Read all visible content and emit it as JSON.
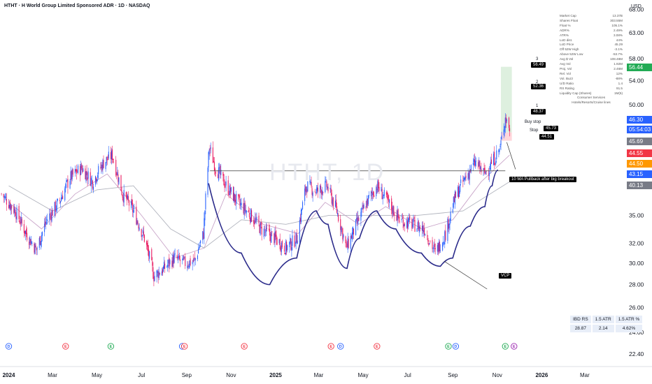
{
  "header": {
    "title": "HTHT · H World Group Limited Sponsored ADR · 1D · NASDAQ",
    "currency": "USD",
    "watermark": "HTHT, 1D"
  },
  "stats_panel": {
    "rows": [
      {
        "label": "Market Cap",
        "value": "13.37B"
      },
      {
        "label": "Shares Float",
        "value": "303.55M"
      },
      {
        "label": "Float %",
        "value": "105.1%"
      },
      {
        "label": "ADR%",
        "value": "2.49%"
      },
      {
        "label": "ATR%",
        "value": "3.08%"
      },
      {
        "label": "LoD dist.",
        "value": "44%"
      },
      {
        "label": "LoD Price",
        "value": "45.29"
      },
      {
        "label": "Off 52W High",
        "value": "-3.1%"
      },
      {
        "label": "Above 52W Low",
        "value": "-53.7%"
      },
      {
        "label": "Avg $ Vol",
        "value": "108.48M"
      },
      {
        "label": "Avg Vol",
        "value": "1.92M"
      },
      {
        "label": "Proj. Vol",
        "value": "2.46M"
      },
      {
        "label": "Rel. Vol",
        "value": "12%"
      },
      {
        "label": "Vol. Buzz",
        "value": "-88%"
      },
      {
        "label": "U/D Ratio",
        "value": "1.4"
      },
      {
        "label": "RS Rating",
        "value": "91.5"
      },
      {
        "label": "Liquidity Cap (Shares)",
        "value": "1M(5)"
      }
    ],
    "sector": "Consumer Services",
    "industry": "Hotels/Resorts/Cruise lines"
  },
  "ibd_table": {
    "headers": [
      "IBD RS",
      "1.5 ATR",
      "1.5 ATR %"
    ],
    "values": [
      "28.87",
      "2.14",
      "4.62%"
    ]
  },
  "price_labels": [
    {
      "value": "56.44",
      "color": "#22ab55"
    },
    {
      "value": "46.30",
      "color": "#2962ff"
    },
    {
      "value": "05:54:03",
      "color": "#2962ff"
    },
    {
      "value": "45.69",
      "color": "#787b86"
    },
    {
      "value": "44.55",
      "color": "#f23645"
    },
    {
      "value": "44.50",
      "color": "#ff9800"
    },
    {
      "value": "43.15",
      "color": "#2962ff"
    },
    {
      "value": "40.13",
      "color": "#787b86"
    }
  ],
  "annotations": {
    "buy_stop": "Buy stop",
    "stop": "Stop",
    "pullback": "10 MA Pullback after big breakout",
    "vcp": "VCP",
    "targets": [
      {
        "n": "3",
        "price": "56.49"
      },
      {
        "n": "2",
        "price": "52.36"
      },
      {
        "n": "1",
        "price": "48.37"
      }
    ],
    "entry_price": "45.73",
    "stop_price": "44.51"
  },
  "events": [
    {
      "x": "2024-01-01",
      "kind": "D",
      "color": "#2962ff"
    },
    {
      "x": "2024-03-19",
      "kind": "E",
      "color": "#f23645"
    },
    {
      "x": "2024-05-20",
      "kind": "E",
      "color": "#22ab55"
    },
    {
      "x": "2024-08-26",
      "kind": "D",
      "color": "#2962ff"
    },
    {
      "x": "2024-08-29",
      "kind": "E",
      "color": "#f23645"
    },
    {
      "x": "2024-11-19",
      "kind": "E",
      "color": "#f23645"
    },
    {
      "x": "2025-03-18",
      "kind": "E",
      "color": "#f23645"
    },
    {
      "x": "2025-03-31",
      "kind": "D",
      "color": "#2962ff"
    },
    {
      "x": "2025-05-20",
      "kind": "E",
      "color": "#f23645"
    },
    {
      "x": "2025-08-26",
      "kind": "E",
      "color": "#22ab55"
    },
    {
      "x": "2025-09-05",
      "kind": "D",
      "color": "#2962ff"
    },
    {
      "x": "2025-11-12",
      "kind": "E",
      "color": "#22ab55"
    },
    {
      "x": "2025-11-24",
      "kind": "E",
      "color": "#9c27b0"
    }
  ],
  "chart_data": {
    "type": "candlestick",
    "title": "HTHT · H World Group Limited Sponsored ADR · 1D · NASDAQ",
    "x_axis": {
      "ticks": [
        "2024",
        "Mar",
        "May",
        "Jul",
        "Sep",
        "Nov",
        "2025",
        "Mar",
        "May",
        "Jul",
        "Sep",
        "Nov",
        "2026",
        "Mar"
      ],
      "tick_dates": [
        "2024-01-01",
        "2024-03-01",
        "2024-05-01",
        "2024-07-01",
        "2024-09-01",
        "2024-11-01",
        "2025-01-01",
        "2025-03-01",
        "2025-05-01",
        "2025-07-01",
        "2025-09-01",
        "2025-11-01",
        "2026-01-01",
        "2026-03-01"
      ],
      "range": [
        "2023-12-20",
        "2026-04-20"
      ]
    },
    "y_axis": {
      "scale": "log",
      "ticks": [
        22.4,
        24.0,
        26.0,
        28.0,
        30.0,
        32.0,
        35.0,
        38.0,
        41.0,
        44.0,
        47.0,
        50.0,
        54.0,
        58.0,
        63.0,
        68.0
      ],
      "tick_labels": [
        "22.40",
        "24.00",
        "26.00",
        "28.00",
        "30.00",
        "32.00",
        "35.00",
        "",
        "",
        "",
        "",
        "50.00",
        "54.00",
        "58.00",
        "63.00",
        "68.00"
      ],
      "range": [
        21.5,
        68.5
      ]
    },
    "price_path": [
      {
        "date": "2023-12-22",
        "close": 37.5
      },
      {
        "date": "2024-01-10",
        "close": 35.5
      },
      {
        "date": "2024-01-25",
        "close": 33.0
      },
      {
        "date": "2024-02-08",
        "close": 31.3
      },
      {
        "date": "2024-02-22",
        "close": 34.5
      },
      {
        "date": "2024-03-10",
        "close": 36.5
      },
      {
        "date": "2024-03-25",
        "close": 39.5
      },
      {
        "date": "2024-04-10",
        "close": 40.8
      },
      {
        "date": "2024-04-25",
        "close": 39.0
      },
      {
        "date": "2024-05-10",
        "close": 41.5
      },
      {
        "date": "2024-05-22",
        "close": 42.5
      },
      {
        "date": "2024-06-05",
        "close": 37.5
      },
      {
        "date": "2024-06-20",
        "close": 35.5
      },
      {
        "date": "2024-07-05",
        "close": 32.5
      },
      {
        "date": "2024-07-18",
        "close": 28.8
      },
      {
        "date": "2024-08-01",
        "close": 29.5
      },
      {
        "date": "2024-08-15",
        "close": 30.5
      },
      {
        "date": "2024-08-29",
        "close": 30.0
      },
      {
        "date": "2024-09-12",
        "close": 30.2
      },
      {
        "date": "2024-09-24",
        "close": 33.0
      },
      {
        "date": "2024-10-02",
        "close": 43.5
      },
      {
        "date": "2024-10-10",
        "close": 41.0
      },
      {
        "date": "2024-10-25",
        "close": 38.5
      },
      {
        "date": "2024-11-10",
        "close": 36.5
      },
      {
        "date": "2024-11-28",
        "close": 35.0
      },
      {
        "date": "2024-12-12",
        "close": 33.5
      },
      {
        "date": "2024-12-31",
        "close": 32.5
      },
      {
        "date": "2025-01-15",
        "close": 31.5
      },
      {
        "date": "2025-01-30",
        "close": 32.5
      },
      {
        "date": "2025-02-12",
        "close": 38.5
      },
      {
        "date": "2025-02-27",
        "close": 37.8
      },
      {
        "date": "2025-03-12",
        "close": 38.5
      },
      {
        "date": "2025-03-26",
        "close": 35.5
      },
      {
        "date": "2025-04-08",
        "close": 31.5
      },
      {
        "date": "2025-04-22",
        "close": 34.0
      },
      {
        "date": "2025-05-06",
        "close": 36.5
      },
      {
        "date": "2025-05-20",
        "close": 38.5
      },
      {
        "date": "2025-06-04",
        "close": 36.5
      },
      {
        "date": "2025-06-20",
        "close": 34.5
      },
      {
        "date": "2025-07-08",
        "close": 34.0
      },
      {
        "date": "2025-07-24",
        "close": 33.5
      },
      {
        "date": "2025-08-08",
        "close": 31.0
      },
      {
        "date": "2025-08-22",
        "close": 33.0
      },
      {
        "date": "2025-09-04",
        "close": 37.0
      },
      {
        "date": "2025-09-18",
        "close": 39.5
      },
      {
        "date": "2025-10-02",
        "close": 41.5
      },
      {
        "date": "2025-10-14",
        "close": 40.0
      },
      {
        "date": "2025-10-28",
        "close": 42.0
      },
      {
        "date": "2025-11-05",
        "close": 43.5
      },
      {
        "date": "2025-11-12",
        "close": 48.0
      },
      {
        "date": "2025-11-18",
        "close": 46.3
      }
    ],
    "moving_averages": [
      {
        "name": "MA short",
        "color": "#c9a5c9",
        "values": [
          {
            "date": "2024-01-01",
            "value": 36.5
          },
          {
            "date": "2024-02-15",
            "value": 33.5
          },
          {
            "date": "2024-04-01",
            "value": 37.5
          },
          {
            "date": "2024-05-15",
            "value": 40.0
          },
          {
            "date": "2024-07-01",
            "value": 35.0
          },
          {
            "date": "2024-08-15",
            "value": 30.5
          },
          {
            "date": "2024-09-25",
            "value": 31.5
          },
          {
            "date": "2024-10-25",
            "value": 37.5
          },
          {
            "date": "2024-12-15",
            "value": 34.0
          },
          {
            "date": "2025-02-01",
            "value": 33.0
          },
          {
            "date": "2025-03-10",
            "value": 36.5
          },
          {
            "date": "2025-04-25",
            "value": 34.0
          },
          {
            "date": "2025-06-01",
            "value": 36.0
          },
          {
            "date": "2025-07-20",
            "value": 33.5
          },
          {
            "date": "2025-09-01",
            "value": 34.5
          },
          {
            "date": "2025-10-10",
            "value": 39.0
          },
          {
            "date": "2025-11-18",
            "value": 42.5
          }
        ]
      },
      {
        "name": "MA long",
        "color": "#b0b3bd",
        "values": [
          {
            "date": "2024-01-01",
            "value": 38.5
          },
          {
            "date": "2024-03-01",
            "value": 35.5
          },
          {
            "date": "2024-05-01",
            "value": 38.0
          },
          {
            "date": "2024-06-20",
            "value": 38.5
          },
          {
            "date": "2024-08-10",
            "value": 33.5
          },
          {
            "date": "2024-09-25",
            "value": 31.5
          },
          {
            "date": "2024-11-15",
            "value": 34.5
          },
          {
            "date": "2025-01-15",
            "value": 34.0
          },
          {
            "date": "2025-03-15",
            "value": 35.0
          },
          {
            "date": "2025-05-15",
            "value": 35.0
          },
          {
            "date": "2025-07-15",
            "value": 35.0
          },
          {
            "date": "2025-09-15",
            "value": 35.5
          },
          {
            "date": "2025-11-18",
            "value": 39.0
          }
        ]
      }
    ],
    "resistance_line": {
      "value": 40.4,
      "from": "2024-10-03",
      "to": "2025-11-12"
    },
    "vcp_curve": [
      {
        "date": "2024-10-01",
        "value": 38.8
      },
      {
        "date": "2024-11-15",
        "value": 31.0
      },
      {
        "date": "2024-12-24",
        "value": 28.0
      },
      {
        "date": "2025-01-30",
        "value": 30.5
      },
      {
        "date": "2025-02-26",
        "value": 35.5
      },
      {
        "date": "2025-03-14",
        "value": 34.0
      },
      {
        "date": "2025-04-09",
        "value": 29.5
      },
      {
        "date": "2025-04-26",
        "value": 32.5
      },
      {
        "date": "2025-05-20",
        "value": 35.5
      },
      {
        "date": "2025-06-15",
        "value": 33.5
      },
      {
        "date": "2025-07-20",
        "value": 31.0
      },
      {
        "date": "2025-08-15",
        "value": 29.7
      },
      {
        "date": "2025-09-01",
        "value": 30.5
      },
      {
        "date": "2025-09-25",
        "value": 33.8
      },
      {
        "date": "2025-10-15",
        "value": 36.0
      },
      {
        "date": "2025-10-25",
        "value": 38.5
      },
      {
        "date": "2025-11-02",
        "value": 40.5
      }
    ],
    "target_zone": {
      "from": "2025-11-06",
      "to": "2025-11-21",
      "low": 45.73,
      "high": 56.49
    },
    "stop_zone": {
      "from": "2025-11-06",
      "to": "2025-11-21",
      "low": 44.51,
      "high": 45.73
    },
    "grid": false,
    "legend": "none"
  }
}
